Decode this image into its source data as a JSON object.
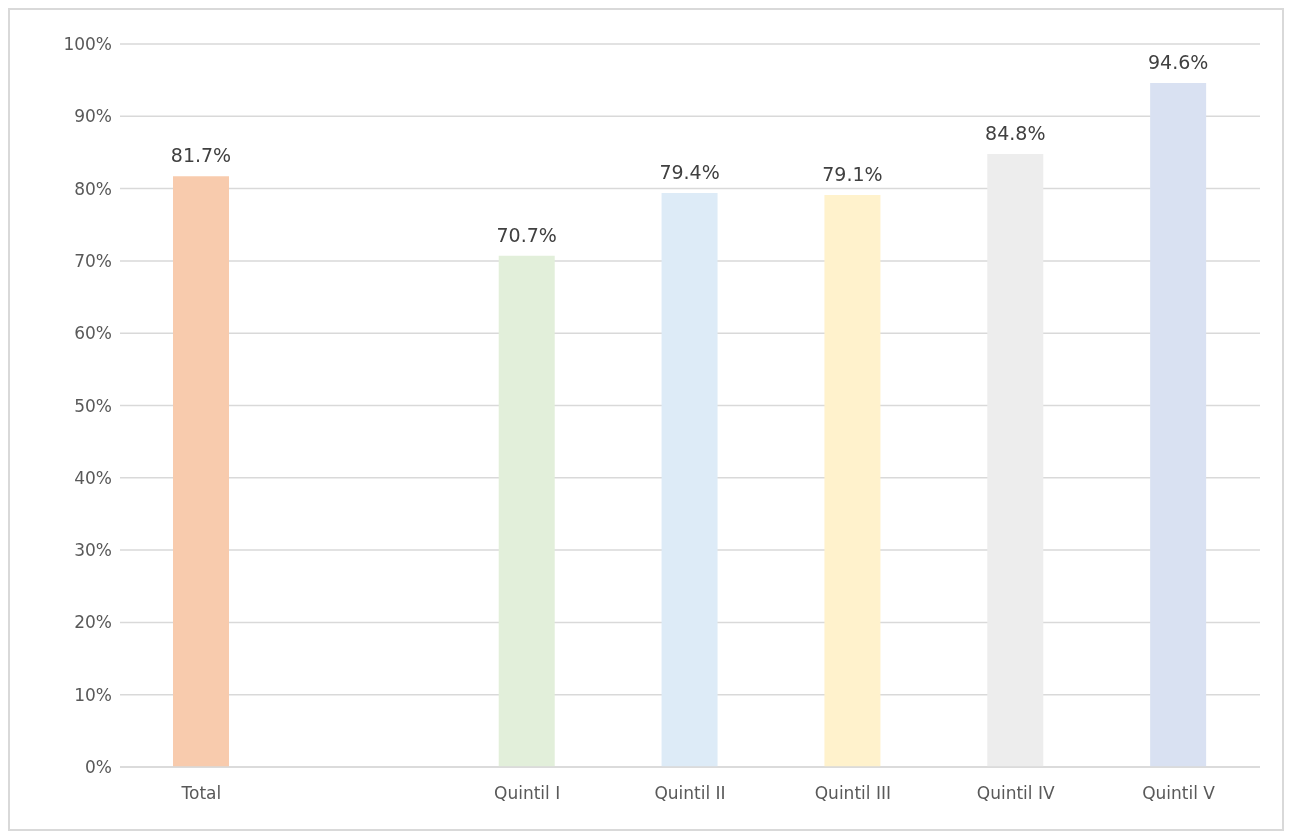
{
  "chart_data": {
    "type": "bar",
    "categories": [
      "Total",
      null,
      "Quintil I",
      "Quintil II",
      "Quintil III",
      "Quintil IV",
      "Quintil V"
    ],
    "values": [
      81.7,
      null,
      70.7,
      79.4,
      79.1,
      84.8,
      94.6
    ],
    "colors": [
      "#f8cbad",
      "#ffffff",
      "#e2efda",
      "#ddebf7",
      "#fff2cc",
      "#ededed",
      "#d9e1f2"
    ],
    "value_labels": [
      "81.7%",
      null,
      "70.7%",
      "79.4%",
      "79.1%",
      "84.8%",
      "94.6%"
    ],
    "ylim": [
      0,
      100
    ],
    "yticks": [
      {
        "value": 0,
        "label": "0%"
      },
      {
        "value": 10,
        "label": "10%"
      },
      {
        "value": 20,
        "label": "20%"
      },
      {
        "value": 30,
        "label": "30%"
      },
      {
        "value": 40,
        "label": "40%"
      },
      {
        "value": 50,
        "label": "50%"
      },
      {
        "value": 60,
        "label": "60%"
      },
      {
        "value": 70,
        "label": "70%"
      },
      {
        "value": 80,
        "label": "80%"
      },
      {
        "value": 90,
        "label": "90%"
      },
      {
        "value": 100,
        "label": "100%"
      }
    ],
    "grid": "y"
  }
}
